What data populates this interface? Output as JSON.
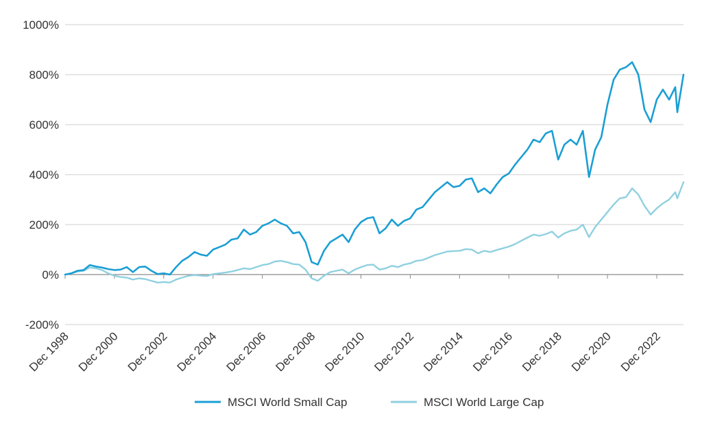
{
  "chart_data": {
    "type": "line",
    "title": "",
    "xlabel": "",
    "ylabel": "",
    "ylim": [
      -200,
      1000
    ],
    "xlim": [
      "1998-12",
      "2024-01"
    ],
    "y_ticks": [
      -200,
      0,
      200,
      400,
      600,
      800,
      1000
    ],
    "y_tick_labels": [
      "-200%",
      "0%",
      "200%",
      "400%",
      "600%",
      "800%",
      "1000%"
    ],
    "x_ticks": [
      "1998-12",
      "2000-12",
      "2002-12",
      "2004-12",
      "2006-12",
      "2008-12",
      "2010-12",
      "2012-12",
      "2014-12",
      "2016-12",
      "2018-12",
      "2020-12",
      "2022-12"
    ],
    "x_tick_labels": [
      "Dec 1998",
      "Dec 2000",
      "Dec 2002",
      "Dec 2004",
      "Dec 2006",
      "Dec 2008",
      "Dec 2010",
      "Dec 2012",
      "Dec 2014",
      "Dec 2016",
      "Dec 2018",
      "Dec 2020",
      "Dec 2022"
    ],
    "grid": "horizontal",
    "legend": "bottom",
    "series": [
      {
        "name": "MSCI World Small Cap",
        "color": "#1a9ed4",
        "points": [
          [
            "1998-12",
            0
          ],
          [
            "1999-03",
            5
          ],
          [
            "1999-06",
            15
          ],
          [
            "1999-09",
            18
          ],
          [
            "1999-12",
            38
          ],
          [
            "2000-03",
            32
          ],
          [
            "2000-06",
            28
          ],
          [
            "2000-09",
            22
          ],
          [
            "2000-12",
            18
          ],
          [
            "2001-03",
            20
          ],
          [
            "2001-06",
            30
          ],
          [
            "2001-09",
            10
          ],
          [
            "2001-12",
            30
          ],
          [
            "2002-03",
            32
          ],
          [
            "2002-06",
            15
          ],
          [
            "2002-09",
            2
          ],
          [
            "2002-12",
            5
          ],
          [
            "2003-03",
            0
          ],
          [
            "2003-06",
            30
          ],
          [
            "2003-09",
            55
          ],
          [
            "2003-12",
            70
          ],
          [
            "2004-03",
            90
          ],
          [
            "2004-06",
            80
          ],
          [
            "2004-09",
            75
          ],
          [
            "2004-12",
            100
          ],
          [
            "2005-03",
            110
          ],
          [
            "2005-06",
            120
          ],
          [
            "2005-09",
            140
          ],
          [
            "2005-12",
            145
          ],
          [
            "2006-03",
            180
          ],
          [
            "2006-06",
            160
          ],
          [
            "2006-09",
            170
          ],
          [
            "2006-12",
            195
          ],
          [
            "2007-03",
            205
          ],
          [
            "2007-06",
            220
          ],
          [
            "2007-09",
            205
          ],
          [
            "2007-12",
            195
          ],
          [
            "2008-03",
            165
          ],
          [
            "2008-06",
            170
          ],
          [
            "2008-09",
            130
          ],
          [
            "2008-12",
            50
          ],
          [
            "2009-03",
            40
          ],
          [
            "2009-06",
            95
          ],
          [
            "2009-09",
            130
          ],
          [
            "2009-12",
            145
          ],
          [
            "2010-03",
            160
          ],
          [
            "2010-06",
            130
          ],
          [
            "2010-09",
            180
          ],
          [
            "2010-12",
            210
          ],
          [
            "2011-03",
            225
          ],
          [
            "2011-06",
            230
          ],
          [
            "2011-09",
            165
          ],
          [
            "2011-12",
            185
          ],
          [
            "2012-03",
            220
          ],
          [
            "2012-06",
            195
          ],
          [
            "2012-09",
            215
          ],
          [
            "2012-12",
            225
          ],
          [
            "2013-03",
            260
          ],
          [
            "2013-06",
            270
          ],
          [
            "2013-09",
            300
          ],
          [
            "2013-12",
            330
          ],
          [
            "2014-03",
            350
          ],
          [
            "2014-06",
            370
          ],
          [
            "2014-09",
            350
          ],
          [
            "2014-12",
            355
          ],
          [
            "2015-03",
            380
          ],
          [
            "2015-06",
            385
          ],
          [
            "2015-09",
            330
          ],
          [
            "2015-12",
            345
          ],
          [
            "2016-03",
            325
          ],
          [
            "2016-06",
            360
          ],
          [
            "2016-09",
            390
          ],
          [
            "2016-12",
            405
          ],
          [
            "2017-03",
            440
          ],
          [
            "2017-06",
            470
          ],
          [
            "2017-09",
            500
          ],
          [
            "2017-12",
            540
          ],
          [
            "2018-03",
            530
          ],
          [
            "2018-06",
            565
          ],
          [
            "2018-09",
            575
          ],
          [
            "2018-12",
            460
          ],
          [
            "2019-03",
            520
          ],
          [
            "2019-06",
            540
          ],
          [
            "2019-09",
            520
          ],
          [
            "2019-12",
            575
          ],
          [
            "2020-03",
            390
          ],
          [
            "2020-06",
            500
          ],
          [
            "2020-09",
            550
          ],
          [
            "2020-12",
            680
          ],
          [
            "2021-03",
            780
          ],
          [
            "2021-06",
            820
          ],
          [
            "2021-09",
            830
          ],
          [
            "2021-12",
            850
          ],
          [
            "2022-03",
            800
          ],
          [
            "2022-06",
            660
          ],
          [
            "2022-09",
            610
          ],
          [
            "2022-12",
            700
          ],
          [
            "2023-03",
            740
          ],
          [
            "2023-06",
            700
          ],
          [
            "2023-09",
            750
          ],
          [
            "2023-10",
            650
          ],
          [
            "2024-01",
            800
          ]
        ]
      },
      {
        "name": "MSCI World Large Cap",
        "color": "#8fd0e0",
        "points": [
          [
            "1998-12",
            0
          ],
          [
            "1999-03",
            5
          ],
          [
            "1999-06",
            12
          ],
          [
            "1999-09",
            15
          ],
          [
            "1999-12",
            28
          ],
          [
            "2000-03",
            25
          ],
          [
            "2000-06",
            18
          ],
          [
            "2000-09",
            5
          ],
          [
            "2000-12",
            -5
          ],
          [
            "2001-03",
            -10
          ],
          [
            "2001-06",
            -12
          ],
          [
            "2001-09",
            -20
          ],
          [
            "2001-12",
            -15
          ],
          [
            "2002-03",
            -18
          ],
          [
            "2002-06",
            -25
          ],
          [
            "2002-09",
            -32
          ],
          [
            "2002-12",
            -30
          ],
          [
            "2003-03",
            -32
          ],
          [
            "2003-06",
            -20
          ],
          [
            "2003-09",
            -12
          ],
          [
            "2003-12",
            -5
          ],
          [
            "2004-03",
            -2
          ],
          [
            "2004-06",
            -4
          ],
          [
            "2004-09",
            -6
          ],
          [
            "2004-12",
            2
          ],
          [
            "2005-03",
            5
          ],
          [
            "2005-06",
            8
          ],
          [
            "2005-09",
            12
          ],
          [
            "2005-12",
            18
          ],
          [
            "2006-03",
            25
          ],
          [
            "2006-06",
            22
          ],
          [
            "2006-09",
            30
          ],
          [
            "2006-12",
            38
          ],
          [
            "2007-03",
            42
          ],
          [
            "2007-06",
            52
          ],
          [
            "2007-09",
            55
          ],
          [
            "2007-12",
            50
          ],
          [
            "2008-03",
            42
          ],
          [
            "2008-06",
            40
          ],
          [
            "2008-09",
            20
          ],
          [
            "2008-12",
            -15
          ],
          [
            "2009-03",
            -25
          ],
          [
            "2009-06",
            -5
          ],
          [
            "2009-09",
            10
          ],
          [
            "2009-12",
            15
          ],
          [
            "2010-03",
            20
          ],
          [
            "2010-06",
            5
          ],
          [
            "2010-09",
            20
          ],
          [
            "2010-12",
            30
          ],
          [
            "2011-03",
            38
          ],
          [
            "2011-06",
            40
          ],
          [
            "2011-09",
            20
          ],
          [
            "2011-12",
            25
          ],
          [
            "2012-03",
            35
          ],
          [
            "2012-06",
            30
          ],
          [
            "2012-09",
            40
          ],
          [
            "2012-12",
            45
          ],
          [
            "2013-03",
            55
          ],
          [
            "2013-06",
            58
          ],
          [
            "2013-09",
            68
          ],
          [
            "2013-12",
            78
          ],
          [
            "2014-03",
            85
          ],
          [
            "2014-06",
            92
          ],
          [
            "2014-09",
            94
          ],
          [
            "2014-12",
            95
          ],
          [
            "2015-03",
            102
          ],
          [
            "2015-06",
            100
          ],
          [
            "2015-09",
            85
          ],
          [
            "2015-12",
            95
          ],
          [
            "2016-03",
            90
          ],
          [
            "2016-06",
            98
          ],
          [
            "2016-09",
            105
          ],
          [
            "2016-12",
            112
          ],
          [
            "2017-03",
            122
          ],
          [
            "2017-06",
            135
          ],
          [
            "2017-09",
            148
          ],
          [
            "2017-12",
            160
          ],
          [
            "2018-03",
            155
          ],
          [
            "2018-06",
            162
          ],
          [
            "2018-09",
            172
          ],
          [
            "2018-12",
            148
          ],
          [
            "2019-03",
            165
          ],
          [
            "2019-06",
            175
          ],
          [
            "2019-09",
            180
          ],
          [
            "2019-12",
            200
          ],
          [
            "2020-03",
            150
          ],
          [
            "2020-06",
            190
          ],
          [
            "2020-09",
            220
          ],
          [
            "2020-12",
            250
          ],
          [
            "2021-03",
            280
          ],
          [
            "2021-06",
            305
          ],
          [
            "2021-09",
            310
          ],
          [
            "2021-12",
            345
          ],
          [
            "2022-03",
            320
          ],
          [
            "2022-06",
            275
          ],
          [
            "2022-09",
            240
          ],
          [
            "2022-12",
            265
          ],
          [
            "2023-03",
            285
          ],
          [
            "2023-06",
            300
          ],
          [
            "2023-09",
            330
          ],
          [
            "2023-10",
            305
          ],
          [
            "2024-01",
            370
          ]
        ]
      }
    ]
  }
}
